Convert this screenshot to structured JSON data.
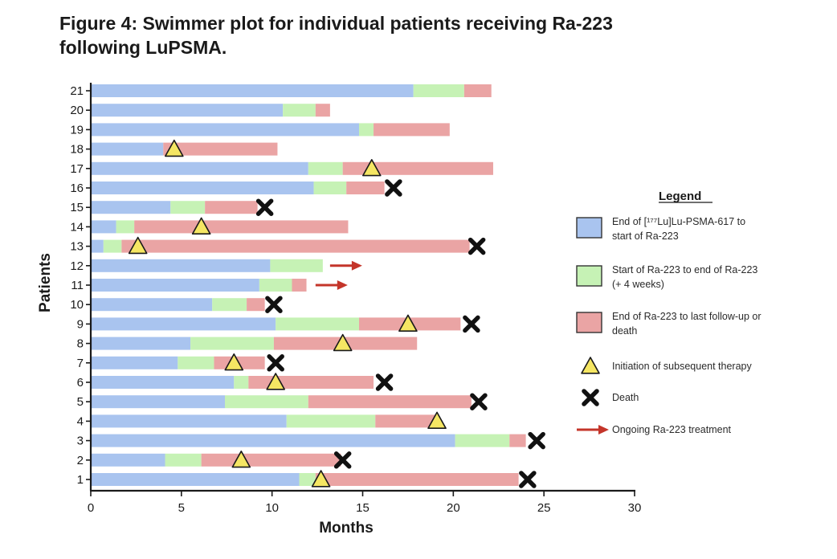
{
  "title": "Figure 4: Swimmer plot for individual patients receiving Ra-223 following LuPSMA.",
  "title_lines": [
    "Figure 4: Swimmer plot for individual patients receiving Ra-223",
    "following LuPSMA."
  ],
  "chart_data": {
    "type": "bar",
    "subtype": "swimmer-horizontal-stacked",
    "title": "Figure 4: Swimmer plot for individual patients receiving Ra-223 following LuPSMA.",
    "xlabel": "Months",
    "ylabel": "Patients",
    "xlim": [
      0,
      30
    ],
    "xticks": [
      0,
      5,
      10,
      15,
      20,
      25,
      30
    ],
    "categories": [
      "1",
      "2",
      "3",
      "4",
      "5",
      "6",
      "7",
      "8",
      "9",
      "10",
      "11",
      "12",
      "13",
      "14",
      "15",
      "16",
      "17",
      "18",
      "19",
      "20",
      "21"
    ],
    "series": [
      {
        "name": "End of [177Lu]Lu-PSMA-617 to start of Ra-223",
        "color": "#a9c4ef",
        "values": [
          11.5,
          4.1,
          20.1,
          10.8,
          7.4,
          7.9,
          4.8,
          5.5,
          10.2,
          6.7,
          9.3,
          9.9,
          0.7,
          1.4,
          4.4,
          12.3,
          12.0,
          4.0,
          14.8,
          10.6,
          17.8
        ]
      },
      {
        "name": "Start of Ra-223 to end of Ra-223 (+ 4 weeks)",
        "color": "#c6f2b5",
        "values": [
          0.9,
          2.0,
          3.0,
          4.9,
          4.6,
          0.8,
          2.0,
          4.6,
          4.6,
          1.9,
          1.8,
          2.9,
          1.0,
          1.0,
          1.9,
          1.8,
          1.9,
          0.0,
          0.8,
          1.8,
          2.8
        ]
      },
      {
        "name": "End of Ra-223 to last follow-up or death",
        "color": "#eaa4a4",
        "values": [
          11.2,
          7.7,
          0.9,
          3.4,
          9.0,
          6.9,
          2.8,
          7.9,
          5.6,
          1.0,
          0.8,
          0.0,
          19.2,
          11.8,
          2.9,
          2.1,
          8.3,
          6.3,
          4.2,
          0.8,
          1.5
        ]
      }
    ],
    "events": {
      "subsequent_therapy": [
        {
          "patient": 1,
          "month": 12.7
        },
        {
          "patient": 2,
          "month": 8.3
        },
        {
          "patient": 4,
          "month": 19.1
        },
        {
          "patient": 6,
          "month": 10.2
        },
        {
          "patient": 7,
          "month": 7.9
        },
        {
          "patient": 8,
          "month": 13.9
        },
        {
          "patient": 9,
          "month": 17.5
        },
        {
          "patient": 13,
          "month": 2.6
        },
        {
          "patient": 14,
          "month": 6.1
        },
        {
          "patient": 17,
          "month": 15.5
        },
        {
          "patient": 18,
          "month": 4.6
        }
      ],
      "death": [
        {
          "patient": 1,
          "month": 24.1
        },
        {
          "patient": 2,
          "month": 13.9
        },
        {
          "patient": 3,
          "month": 24.6
        },
        {
          "patient": 5,
          "month": 21.4
        },
        {
          "patient": 6,
          "month": 16.2
        },
        {
          "patient": 7,
          "month": 10.2
        },
        {
          "patient": 9,
          "month": 21.0
        },
        {
          "patient": 10,
          "month": 10.1
        },
        {
          "patient": 13,
          "month": 21.3
        },
        {
          "patient": 15,
          "month": 9.6
        },
        {
          "patient": 16,
          "month": 16.7
        }
      ],
      "ongoing": [
        {
          "patient": 11,
          "month": 12.4
        },
        {
          "patient": 12,
          "month": 13.2
        }
      ]
    },
    "legend": {
      "title": "Legend",
      "position": "right",
      "entries": [
        {
          "key": "lu",
          "lines": [
            "End of [¹⁷⁷Lu]Lu-PSMA-617 to",
            "start of Ra-223"
          ],
          "color": "#a9c4ef"
        },
        {
          "key": "ra",
          "lines": [
            "Start of Ra-223 to end of Ra-223",
            "(+ 4 weeks)"
          ],
          "color": "#c6f2b5"
        },
        {
          "key": "fu",
          "lines": [
            "End of Ra-223 to last follow-up or",
            "death"
          ],
          "color": "#eaa4a4"
        },
        {
          "key": "tri",
          "lines": [
            "Initiation of subsequent therapy"
          ],
          "color": "#f5e663"
        },
        {
          "key": "death",
          "lines": [
            "Death"
          ],
          "color": "#111111"
        },
        {
          "key": "arrow",
          "lines": [
            "Ongoing Ra-223 treatment"
          ],
          "color": "#c4352a"
        }
      ]
    }
  }
}
